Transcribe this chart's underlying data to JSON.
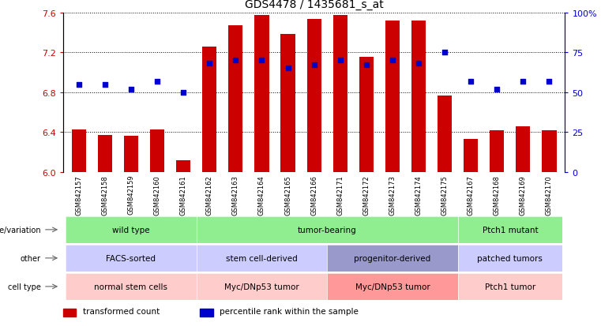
{
  "title": "GDS4478 / 1435681_s_at",
  "samples": [
    "GSM842157",
    "GSM842158",
    "GSM842159",
    "GSM842160",
    "GSM842161",
    "GSM842162",
    "GSM842163",
    "GSM842164",
    "GSM842165",
    "GSM842166",
    "GSM842171",
    "GSM842172",
    "GSM842173",
    "GSM842174",
    "GSM842175",
    "GSM842167",
    "GSM842168",
    "GSM842169",
    "GSM842170"
  ],
  "bar_values": [
    6.43,
    6.37,
    6.36,
    6.43,
    6.12,
    7.26,
    7.47,
    7.57,
    7.38,
    7.53,
    7.57,
    7.15,
    7.52,
    7.52,
    6.77,
    6.33,
    6.42,
    6.46,
    6.42
  ],
  "dot_values": [
    55,
    55,
    52,
    57,
    50,
    68,
    70,
    70,
    65,
    67,
    70,
    67,
    70,
    68,
    75,
    57,
    52,
    57,
    57
  ],
  "ylim_left": [
    6.0,
    7.6
  ],
  "ylim_right": [
    0,
    100
  ],
  "yticks_left": [
    6.0,
    6.4,
    6.8,
    7.2,
    7.6
  ],
  "yticks_right": [
    0,
    25,
    50,
    75,
    100
  ],
  "ytick_right_labels": [
    "0",
    "25",
    "50",
    "75",
    "100%"
  ],
  "bar_color": "#CC0000",
  "dot_color": "#0000CC",
  "annotation_rows": [
    {
      "label": "genotype/variation",
      "groups": [
        {
          "text": "wild type",
          "start": 0,
          "end": 5,
          "color": "#90EE90"
        },
        {
          "text": "tumor-bearing",
          "start": 5,
          "end": 15,
          "color": "#90EE90"
        },
        {
          "text": "Ptch1 mutant",
          "start": 15,
          "end": 19,
          "color": "#90EE90"
        }
      ]
    },
    {
      "label": "other",
      "groups": [
        {
          "text": "FACS-sorted",
          "start": 0,
          "end": 5,
          "color": "#CCCCFF"
        },
        {
          "text": "stem cell-derived",
          "start": 5,
          "end": 10,
          "color": "#CCCCFF"
        },
        {
          "text": "progenitor-derived",
          "start": 10,
          "end": 15,
          "color": "#9999CC"
        },
        {
          "text": "patched tumors",
          "start": 15,
          "end": 19,
          "color": "#CCCCFF"
        }
      ]
    },
    {
      "label": "cell type",
      "groups": [
        {
          "text": "normal stem cells",
          "start": 0,
          "end": 5,
          "color": "#FFCCCC"
        },
        {
          "text": "Myc/DNp53 tumor",
          "start": 5,
          "end": 10,
          "color": "#FFCCCC"
        },
        {
          "text": "Myc/DNp53 tumor",
          "start": 10,
          "end": 15,
          "color": "#FF9999"
        },
        {
          "text": "Ptch1 tumor",
          "start": 15,
          "end": 19,
          "color": "#FFCCCC"
        }
      ]
    }
  ],
  "legend_items": [
    {
      "label": "transformed count",
      "color": "#CC0000"
    },
    {
      "label": "percentile rank within the sample",
      "color": "#0000CC"
    }
  ]
}
